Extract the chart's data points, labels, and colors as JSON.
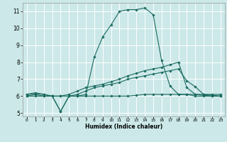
{
  "xlabel": "Humidex (Indice chaleur)",
  "bg_color": "#cce8e8",
  "grid_color": "#ffffff",
  "line_color": "#1a6b60",
  "xlim": [
    -0.5,
    23.5
  ],
  "ylim": [
    4.8,
    11.5
  ],
  "yticks": [
    5,
    6,
    7,
    8,
    9,
    10,
    11
  ],
  "xticks": [
    0,
    1,
    2,
    3,
    4,
    5,
    6,
    7,
    8,
    9,
    10,
    11,
    12,
    13,
    14,
    15,
    16,
    17,
    18,
    19,
    20,
    21,
    22,
    23
  ],
  "lines": [
    {
      "x": [
        0,
        1,
        2,
        3,
        4,
        5,
        6,
        7,
        8,
        9,
        10,
        11,
        12,
        13,
        14,
        15,
        16,
        17,
        18,
        19,
        20,
        21,
        22,
        23
      ],
      "y": [
        6.1,
        6.2,
        6.1,
        6.0,
        5.1,
        6.0,
        6.0,
        6.1,
        8.3,
        9.5,
        10.2,
        11.0,
        11.1,
        11.1,
        11.2,
        10.8,
        8.1,
        6.6,
        6.1,
        6.1,
        6.1,
        6.1,
        6.1,
        6.1
      ]
    },
    {
      "x": [
        0,
        1,
        2,
        3,
        4,
        5,
        6,
        7,
        8,
        9,
        10,
        11,
        12,
        13,
        14,
        15,
        16,
        17,
        18,
        19,
        20,
        21,
        22,
        23
      ],
      "y": [
        6.0,
        6.1,
        6.0,
        6.0,
        6.0,
        6.1,
        6.3,
        6.5,
        6.6,
        6.7,
        6.85,
        7.0,
        7.2,
        7.35,
        7.5,
        7.6,
        7.7,
        7.85,
        8.0,
        6.5,
        6.1,
        6.05,
        6.0,
        6.0
      ]
    },
    {
      "x": [
        0,
        1,
        2,
        3,
        4,
        5,
        6,
        7,
        8,
        9,
        10,
        11,
        12,
        13,
        14,
        15,
        16,
        17,
        18,
        19,
        20,
        21,
        22,
        23
      ],
      "y": [
        6.0,
        6.0,
        6.0,
        6.0,
        6.0,
        6.0,
        6.0,
        6.0,
        6.0,
        6.0,
        6.0,
        6.0,
        6.0,
        6.05,
        6.1,
        6.1,
        6.1,
        6.1,
        6.1,
        6.1,
        6.0,
        6.0,
        6.0,
        6.0
      ]
    },
    {
      "x": [
        0,
        1,
        2,
        3,
        4,
        5,
        6,
        7,
        8,
        9,
        10,
        11,
        12,
        13,
        14,
        15,
        16,
        17,
        18,
        19,
        20,
        21,
        22,
        23
      ],
      "y": [
        6.1,
        6.15,
        6.1,
        6.0,
        5.1,
        6.0,
        6.1,
        6.3,
        6.5,
        6.6,
        6.7,
        6.8,
        7.0,
        7.1,
        7.2,
        7.3,
        7.4,
        7.5,
        7.6,
        6.9,
        6.55,
        6.1,
        6.05,
        6.0
      ]
    }
  ]
}
